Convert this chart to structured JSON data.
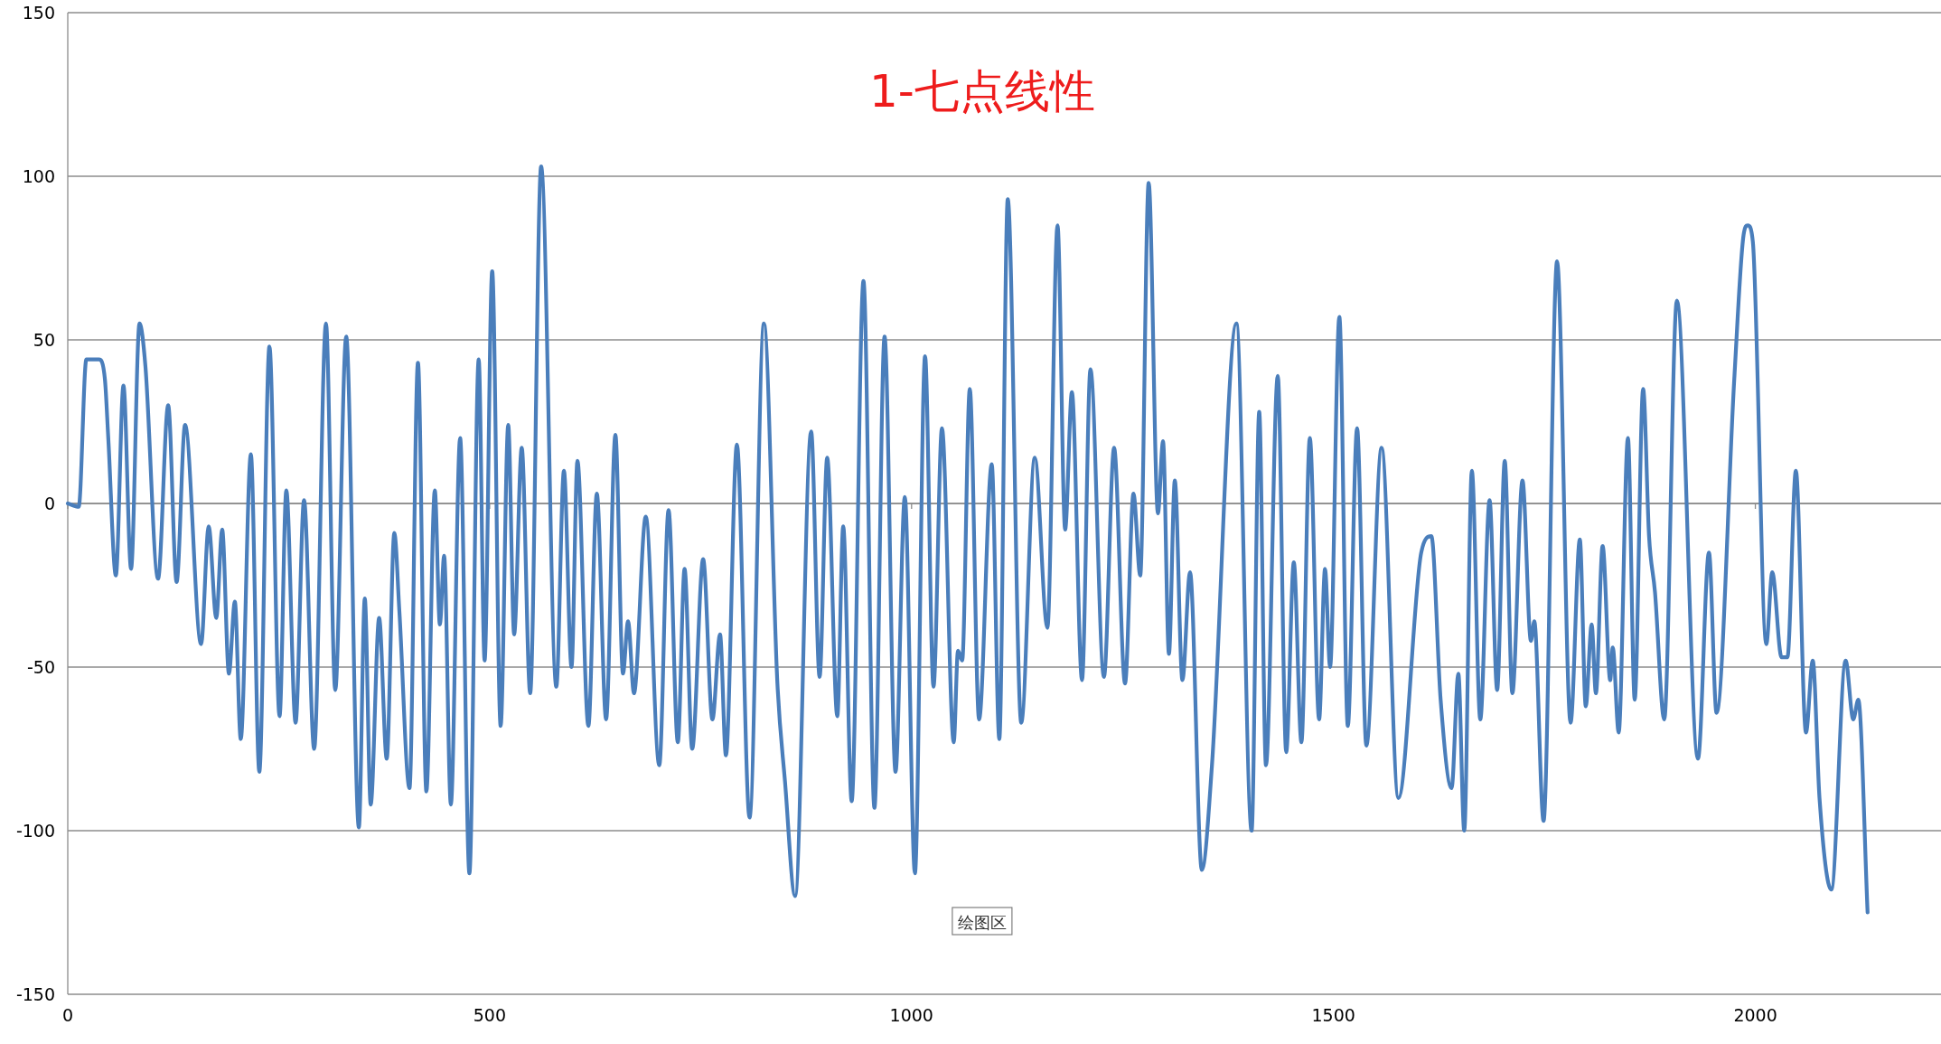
{
  "chart_data": {
    "type": "line",
    "title": "1-七点线性",
    "annotations": [
      "绘图区"
    ],
    "xlim": [
      0,
      2220
    ],
    "xticks": [
      0,
      500,
      1000,
      1500,
      2000
    ],
    "ylim": [
      -150,
      150
    ],
    "yticks": [
      -150,
      -100,
      -50,
      0,
      50,
      100,
      150
    ],
    "grid": "y",
    "line_style": "solid",
    "series": [
      {
        "color": "#4a7ebb",
        "x": [
          0,
          13,
          22,
          37,
          44,
          48,
          57,
          66,
          75,
          85,
          92,
          107,
          119,
          129,
          139,
          158,
          167,
          176,
          183,
          191,
          198,
          205,
          217,
          227,
          239,
          251,
          259,
          270,
          280,
          292,
          306,
          317,
          330,
          345,
          352,
          359,
          369,
          378,
          387,
          393,
          405,
          415,
          425,
          435,
          441,
          446,
          454,
          465,
          476,
          487,
          494,
          503,
          513,
          522,
          529,
          538,
          548,
          561,
          579,
          588,
          597,
          604,
          617,
          627,
          638,
          649,
          658,
          664,
          671,
          685,
          701,
          712,
          723,
          731,
          740,
          753,
          764,
          773,
          780,
          793,
          808,
          825,
          841,
          850,
          862,
          881,
          891,
          900,
          912,
          919,
          929,
          943,
          956,
          968,
          981,
          992,
          1004,
          1016,
          1026,
          1036,
          1050,
          1055,
          1060,
          1069,
          1080,
          1095,
          1104,
          1114,
          1130,
          1146,
          1161,
          1173,
          1182,
          1190,
          1202,
          1212,
          1228,
          1240,
          1253,
          1263,
          1271,
          1281,
          1292,
          1298,
          1305,
          1312,
          1321,
          1330,
          1344,
          1356,
          1385,
          1403,
          1412,
          1420,
          1434,
          1444,
          1453,
          1462,
          1472,
          1483,
          1490,
          1496,
          1507,
          1517,
          1528,
          1539,
          1557,
          1577,
          1604,
          1616,
          1627,
          1640,
          1648,
          1655,
          1664,
          1674,
          1685,
          1694,
          1703,
          1712,
          1724,
          1734,
          1738,
          1749,
          1765,
          1781,
          1792,
          1799,
          1806,
          1811,
          1819,
          1828,
          1831,
          1838,
          1849,
          1857,
          1867,
          1874,
          1881,
          1892,
          1907,
          1932,
          1945,
          1954,
          1975,
          1986,
          1991,
          1997,
          2013,
          2020,
          2031,
          2038,
          2048,
          2060,
          2068,
          2076,
          2090,
          2107,
          2116,
          2122,
          2133
        ],
        "values": [
          0,
          -1,
          44,
          44,
          38,
          20,
          -22,
          36,
          -20,
          55,
          42,
          -23,
          30,
          -24,
          24,
          -43,
          -7,
          -35,
          -8,
          -52,
          -30,
          -72,
          15,
          -82,
          48,
          -65,
          4,
          -67,
          1,
          -75,
          55,
          -57,
          51,
          -99,
          -29,
          -92,
          -35,
          -78,
          -9,
          -33,
          -87,
          43,
          -88,
          4,
          -37,
          -16,
          -92,
          20,
          -113,
          44,
          -48,
          71,
          -68,
          24,
          -40,
          17,
          -58,
          103,
          -56,
          10,
          -50,
          13,
          -68,
          3,
          -66,
          21,
          -52,
          -36,
          -58,
          -4,
          -80,
          -2,
          -73,
          -20,
          -75,
          -17,
          -66,
          -40,
          -77,
          18,
          -96,
          55,
          -55,
          -85,
          -120,
          22,
          -53,
          14,
          -65,
          -7,
          -91,
          68,
          -93,
          51,
          -82,
          2,
          -113,
          45,
          -56,
          23,
          -73,
          -45,
          -48,
          35,
          -66,
          12,
          -72,
          93,
          -67,
          14,
          -38,
          85,
          -8,
          34,
          -54,
          41,
          -53,
          17,
          -55,
          3,
          -22,
          98,
          -3,
          19,
          -46,
          7,
          -54,
          -21,
          -112,
          -80,
          55,
          -100,
          28,
          -80,
          39,
          -76,
          -18,
          -73,
          20,
          -66,
          -20,
          -50,
          57,
          -68,
          23,
          -74,
          17,
          -90,
          -15,
          -10,
          -60,
          -87,
          -52,
          -100,
          10,
          -66,
          1,
          -57,
          13,
          -58,
          7,
          -42,
          -36,
          -97,
          74,
          -67,
          -11,
          -62,
          -37,
          -58,
          -13,
          -54,
          -44,
          -70,
          20,
          -60,
          35,
          -10,
          -27,
          -66,
          62,
          -78,
          -15,
          -64,
          38,
          82,
          85,
          80,
          -43,
          -21,
          -47,
          -47,
          10,
          -70,
          -48,
          -90,
          -118,
          -48,
          -66,
          -60,
          -125
        ]
      }
    ]
  }
}
